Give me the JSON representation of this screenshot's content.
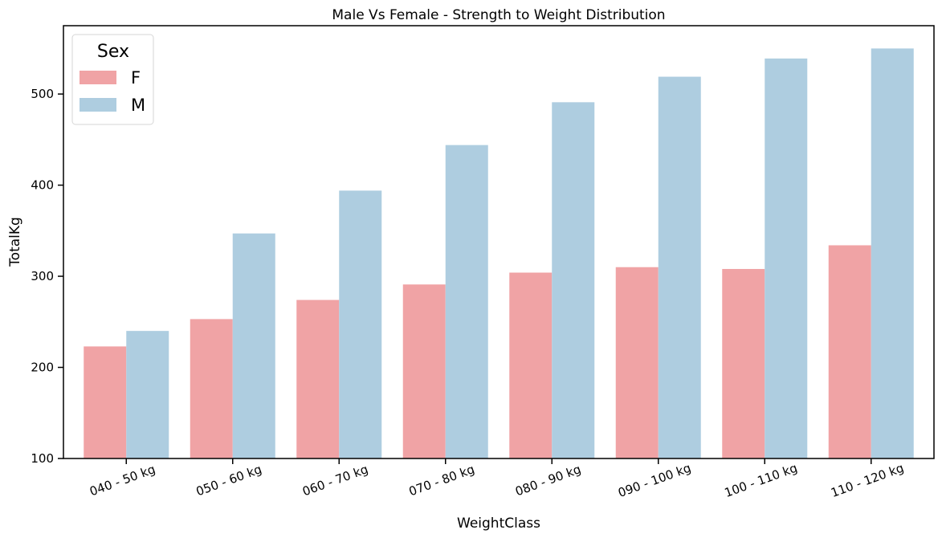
{
  "chart_data": {
    "type": "bar",
    "title": "Male Vs Female - Strength to Weight Distribution",
    "xlabel": "WeightClass",
    "ylabel": "TotalKg",
    "ylim": [
      100,
      575
    ],
    "yticks": [
      100,
      200,
      300,
      400,
      500
    ],
    "categories": [
      "040 - 50 kg",
      "050 - 60 kg",
      "060 - 70 kg",
      "070 - 80 kg",
      "080 - 90 kg",
      "090 - 100 kg",
      "100 - 110 kg",
      "110 - 120 kg"
    ],
    "series": [
      {
        "name": "F",
        "color": "#f0a3a5",
        "values": [
          223,
          253,
          274,
          291,
          304,
          310,
          308,
          334
        ]
      },
      {
        "name": "M",
        "color": "#aecde0",
        "values": [
          240,
          347,
          394,
          444,
          491,
          519,
          539,
          550
        ]
      }
    ],
    "legend": {
      "title": "Sex",
      "position": "top-left"
    },
    "grid": false
  }
}
